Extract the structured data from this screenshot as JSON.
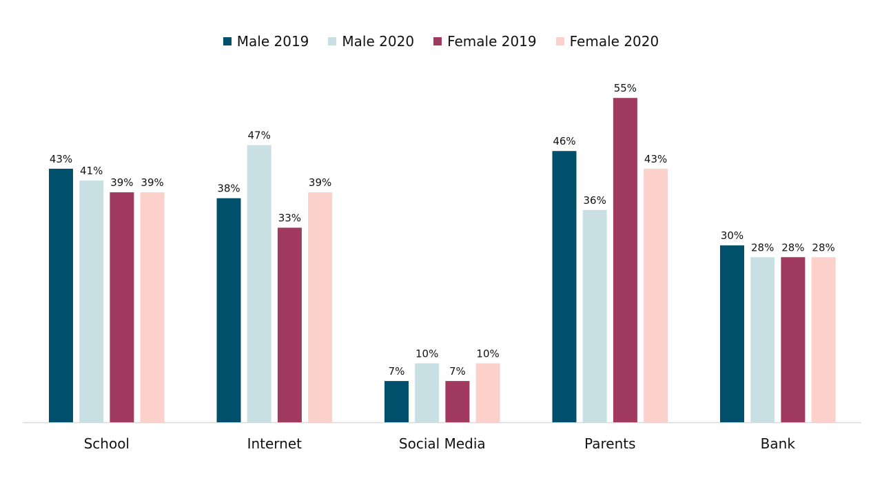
{
  "chart_data": {
    "type": "bar",
    "categories": [
      "School",
      "Internet",
      "Social Media",
      "Parents",
      "Bank"
    ],
    "series": [
      {
        "name": "Male 2019",
        "values": [
          43,
          38,
          7,
          46,
          30
        ],
        "color": "#004f6b"
      },
      {
        "name": "Male 2020",
        "values": [
          41,
          47,
          10,
          36,
          28
        ],
        "color": "#c8e0e4"
      },
      {
        "name": "Female 2019",
        "values": [
          39,
          33,
          7,
          55,
          28
        ],
        "color": "#a03a5f"
      },
      {
        "name": "Female 2020",
        "values": [
          39,
          39,
          10,
          43,
          28
        ],
        "color": "#fcd1cb"
      }
    ],
    "value_suffix": "%",
    "ylim": [
      0,
      55
    ],
    "legend_position": "top-center",
    "grid": false
  },
  "colors": {
    "axis": "#d9d9d9",
    "label_text": "#111111"
  }
}
